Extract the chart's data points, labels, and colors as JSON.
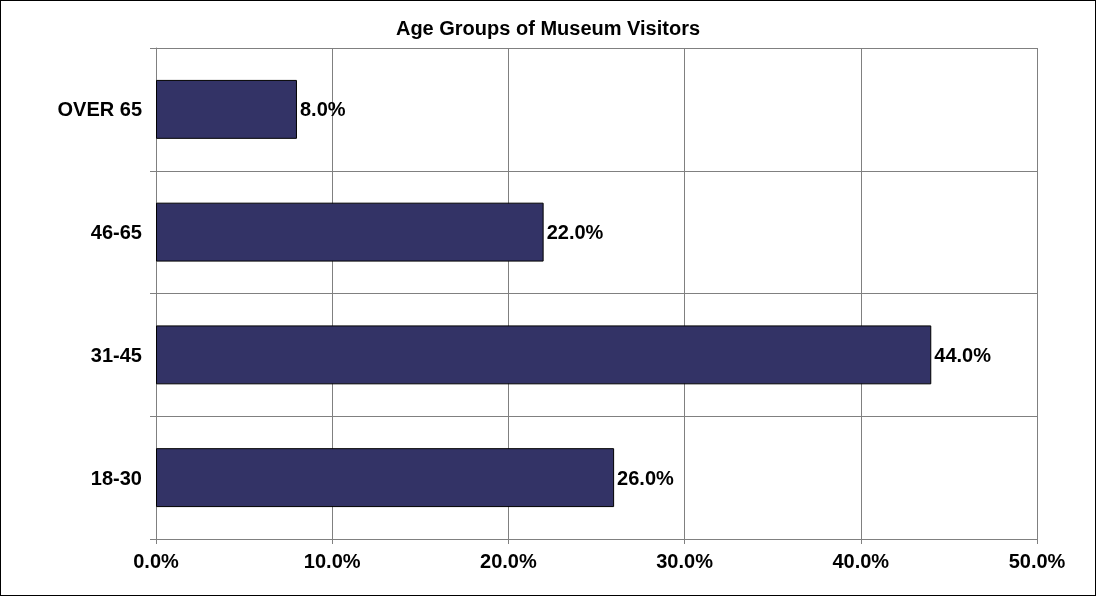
{
  "chart_data": {
    "type": "bar",
    "title": "Age Groups of Museum Visitors",
    "orientation": "horizontal",
    "categories": [
      "OVER 65",
      "46-65",
      "31-45",
      "18-30"
    ],
    "values": [
      8,
      22,
      44,
      26
    ],
    "color": "#333366",
    "value_labels": [
      "8.0%",
      "22.0%",
      "44.0%",
      "26.0%"
    ],
    "xlim": [
      0,
      50
    ],
    "xticks": [
      {
        "value": 0,
        "label": "0.0%"
      },
      {
        "value": 10,
        "label": "10.0%"
      },
      {
        "value": 20,
        "label": "20.0%"
      },
      {
        "value": 30,
        "label": "30.0%"
      },
      {
        "value": 40,
        "label": "40.0%"
      },
      {
        "value": 50,
        "label": "50.0%"
      }
    ],
    "grid": true
  }
}
